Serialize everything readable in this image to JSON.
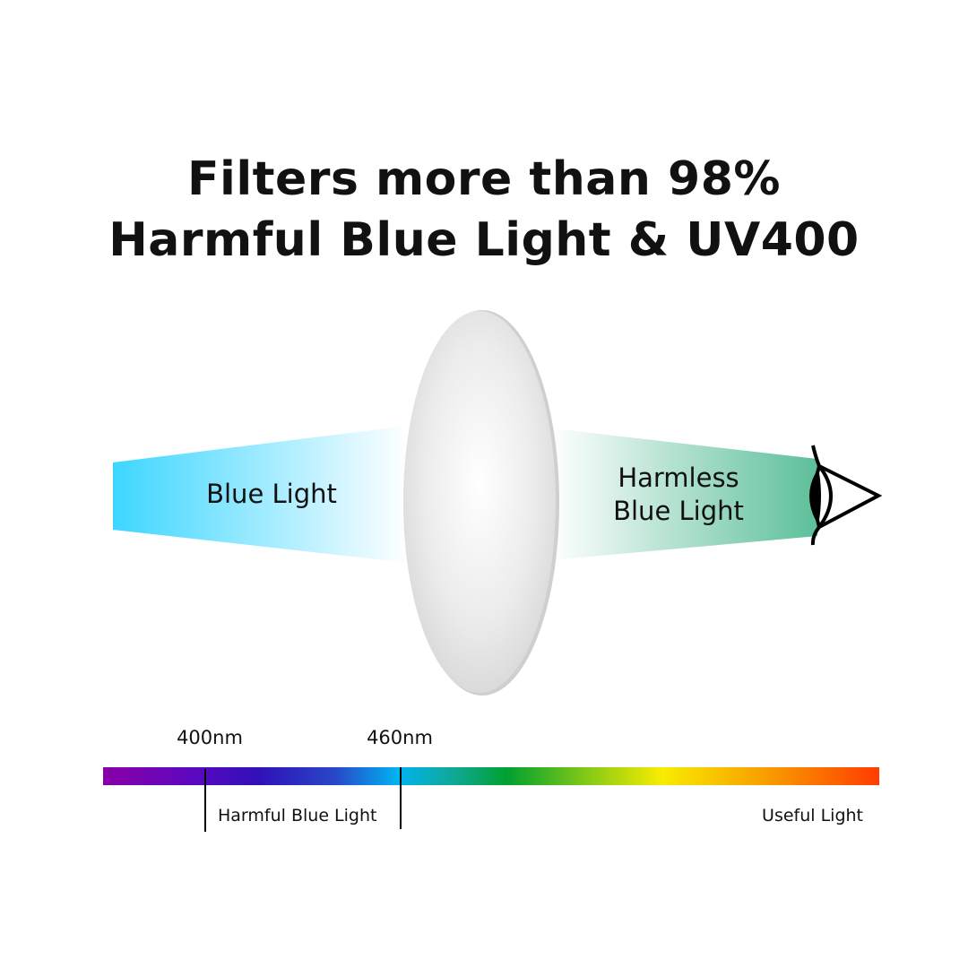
{
  "title": {
    "line1": "Filters more than 98%",
    "line2": "Harmful Blue Light & UV400"
  },
  "diagram": {
    "incoming_label": "Blue Light",
    "outgoing_label_line1": "Harmless",
    "outgoing_label_line2": "Blue Light",
    "icons": [
      "lens-icon",
      "eye-icon"
    ],
    "colors": {
      "blue_light": "#3dd6ff",
      "harmless_light": "#5cbf9a"
    }
  },
  "spectrum": {
    "marks": [
      "400nm",
      "460nm"
    ],
    "harmful_label": "Harmful Blue Light",
    "useful_label": "Useful Light",
    "colors": [
      "#8a00a8",
      "#3a10c0",
      "#2a3ac8",
      "#00b0f0",
      "#10a890",
      "#00a030",
      "#a0d010",
      "#f8ec00",
      "#f8a800",
      "#ff3c00"
    ]
  }
}
